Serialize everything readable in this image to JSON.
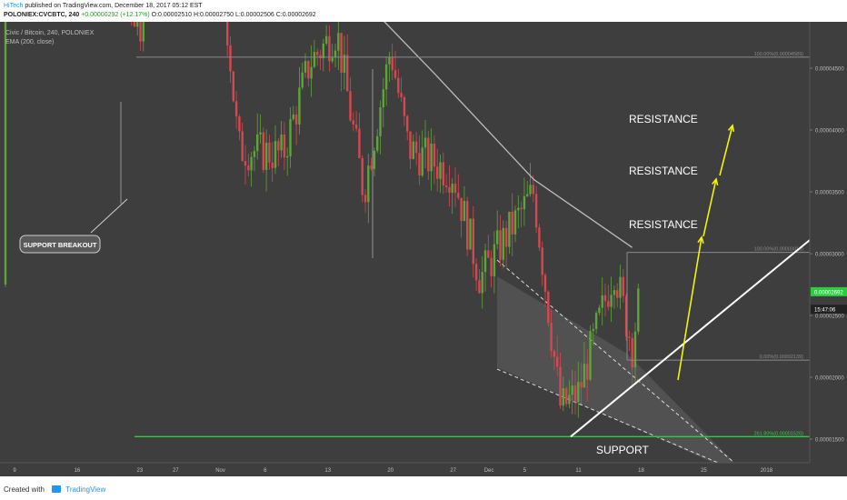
{
  "header": {
    "author": "HiTech",
    "published": "published on TradingView.com, December 18, 2017 05:12 EST",
    "symbol": "POLONIEX:CVCBTC, 240",
    "change": "+0.00000292 (+12.17%)",
    "open": "O:0.00002510",
    "high": "H:0.00002750",
    "low": "L:0.00002506",
    "close": "C:0.00002692"
  },
  "legend": {
    "title": "Civic / Bitcoin, 240, POLONIEX",
    "indicator": "EMA (200, close)"
  },
  "footer": {
    "created": "Created with",
    "brand": "TradingView"
  },
  "colors": {
    "background": "#3e3e3e",
    "up_candle": "#5fa43a",
    "down_candle": "#d6474f",
    "ema": "#bdbdbd",
    "fib_orange": "#f7931a",
    "support_green": "#2ecc40",
    "arrow_yellow": "#f4f20a",
    "trendline": "#ffffff"
  },
  "chart_data": {
    "type": "candlestick",
    "y_axis": {
      "ticks": [
        "0.00008000",
        "0.00007500",
        "0.00007000",
        "0.00006500",
        "0.00006000",
        "0.00005500",
        "0.00005000",
        "0.00004500",
        "0.00004000",
        "0.00003500",
        "0.00003000",
        "0.00002500",
        "0.00002000",
        "0.00001500"
      ],
      "tick_values": [
        8e-05,
        7.5e-05,
        7e-05,
        6.5e-05,
        6e-05,
        5.5e-05,
        5e-05,
        4.5e-05,
        4e-05,
        3.5e-05,
        3e-05,
        2.5e-05,
        2e-05,
        1.5e-05
      ],
      "ylim": [
        1.13e-05,
        8.35e-05
      ]
    },
    "x_axis": {
      "ticks": [
        "9",
        "16",
        "23",
        "27",
        "Nov",
        "6",
        "13",
        "20",
        "27",
        "Dec",
        "5",
        "11",
        "18",
        "25",
        "2018"
      ]
    },
    "price_key_points": [
      [
        "Oct 9",
        7.65e-05
      ],
      [
        "Oct 11",
        7.4e-05
      ],
      [
        "Oct 13",
        6.1e-05
      ],
      [
        "Oct 16",
        5.55e-05
      ],
      [
        "Oct 20",
        5.9e-05
      ],
      [
        "Oct 22",
        5.1e-05
      ],
      [
        "Oct 23",
        4.75e-05
      ],
      [
        "Oct 24",
        6.45e-05
      ],
      [
        "Oct 27",
        5.4e-05
      ],
      [
        "Oct 30",
        6.3e-05
      ],
      [
        "Nov 1",
        5.45e-05
      ],
      [
        "Nov 3",
        3.85e-05
      ],
      [
        "Nov 8",
        3.8e-05
      ],
      [
        "Nov 11",
        4.55e-05
      ],
      [
        "Nov 14",
        4.8e-05
      ],
      [
        "Nov 17",
        3.5e-05
      ],
      [
        "Nov 20",
        4.65e-05
      ],
      [
        "Nov 22",
        3.85e-05
      ],
      [
        "Nov 27",
        3.65e-05
      ],
      [
        "Nov 30",
        2.8e-05
      ],
      [
        "Dec 3",
        3.15e-05
      ],
      [
        "Dec 6",
        3.5e-05
      ],
      [
        "Dec 9",
        1.75e-05
      ],
      [
        "Dec 11",
        1.875e-05
      ],
      [
        "Dec 15",
        2.88e-05
      ],
      [
        "Dec 17",
        2.25e-05
      ],
      [
        "Dec 18",
        2.75e-05
      ]
    ],
    "ema_200": [
      [
        "Oct 12",
        8.15e-05
      ],
      [
        "Oct 23",
        7.33e-05
      ],
      [
        "Oct 31",
        6.55e-05
      ],
      [
        "Nov 13",
        5.35e-05
      ],
      [
        "Nov 25",
        4.45e-05
      ],
      [
        "Dec 6",
        3.6e-05
      ],
      [
        "Dec 17",
        3.05e-05
      ]
    ],
    "resistance_zone": {
      "from": 6.48e-05,
      "to": 6.72e-05
    },
    "support_zone": {
      "from": 5.4e-05,
      "to": 5.55e-05
    },
    "fib_levels": [
      {
        "label": "527.20%(0.00006717)",
        "value": 6.717e-05,
        "color": "orange"
      },
      {
        "label": "0.00%(0.00006536)",
        "value": 6.536e-05,
        "color": "gray"
      },
      {
        "label": "427.20%(0.00005847)",
        "value": 5.847e-05,
        "color": "orange"
      },
      {
        "label": "327.20%(0.00004977)",
        "value": 4.977e-05,
        "color": "orange"
      },
      {
        "label": "100.00%(0.00004589)",
        "value": 4.589e-05,
        "color": "gray"
      },
      {
        "label": "100.00%(0.00003010)",
        "value": 3.01e-05,
        "color": "gray"
      },
      {
        "label": "0.00%(0.00002139)",
        "value": 2.139e-05,
        "color": "gray"
      },
      {
        "label": "261.80%(0.00001520)",
        "value": 1.52e-05,
        "color": "green"
      }
    ],
    "price_tags": [
      {
        "label": "0.00002692",
        "value": 2.692e-05,
        "color": "green"
      },
      {
        "label": "15:47:06",
        "value": 2.55e-05,
        "color": "dark"
      }
    ],
    "annotations": {
      "resistance_1": "RESISTANCE",
      "resistance_2": "RESISTANCE",
      "resistance_3": "RESISTANCE",
      "support": "SUPPORT",
      "support_breakout": "SUPPORT BREAKOUT"
    }
  }
}
